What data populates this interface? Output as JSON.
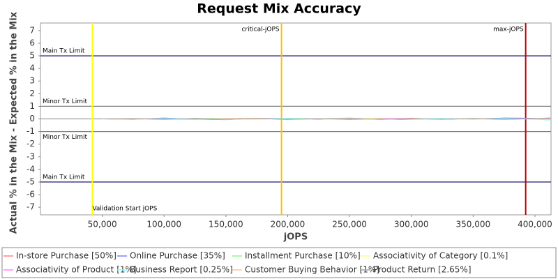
{
  "chart_data": {
    "type": "line",
    "title": "Request Mix Accuracy",
    "x_label": "jOPS",
    "y_label": "Actual % in the Mix - Expected % in the Mix",
    "xlim": [
      0,
      413000
    ],
    "ylim": [
      -7.6,
      7.6
    ],
    "xticks": [
      {
        "value": 50000,
        "label": "50,000"
      },
      {
        "value": 100000,
        "label": "100,000"
      },
      {
        "value": 150000,
        "label": "150,000"
      },
      {
        "value": 200000,
        "label": "200,000"
      },
      {
        "value": 250000,
        "label": "250,000"
      },
      {
        "value": 300000,
        "label": "300,000"
      },
      {
        "value": 350000,
        "label": "350,000"
      },
      {
        "value": 400000,
        "label": "400,000"
      }
    ],
    "yticks": [
      -7,
      -6,
      -5,
      -4,
      -3,
      -2,
      -1,
      0,
      1,
      2,
      3,
      4,
      5,
      6,
      7
    ],
    "grid": true,
    "horizontal_lines": [
      {
        "value": 5,
        "label": "Main Tx Limit",
        "color": "#000060",
        "label_side": "above"
      },
      {
        "value": 1,
        "label": "Minor Tx Limit",
        "color": "#808080",
        "label_side": "above"
      },
      {
        "value": -1,
        "label": "Minor Tx Limit",
        "color": "#808080",
        "label_side": "below"
      },
      {
        "value": -5,
        "label": "Main Tx Limit",
        "color": "#000060",
        "label_side": "above"
      }
    ],
    "vertical_lines": [
      {
        "value": 42000,
        "label": "Validation Start jOPS",
        "color": "#ffff00",
        "label_side": "bottom"
      },
      {
        "value": 195000,
        "label": "critical-jOPS",
        "color": "#ffc000",
        "label_side": "top"
      },
      {
        "value": 392500,
        "label": "max-jOPS",
        "color": "#c00000",
        "label_side": "top"
      }
    ],
    "x": [
      50000,
      75000,
      100000,
      125000,
      150000,
      175000,
      200000,
      225000,
      250000,
      275000,
      300000,
      325000,
      350000,
      375000,
      400000,
      412000
    ],
    "series": [
      {
        "name": "In-store Purchase [50%]",
        "color": "#ff8080",
        "values": [
          0,
          0.02,
          -0.03,
          0.05,
          -0.02,
          0.04,
          -0.05,
          0.03,
          0.02,
          -0.04,
          0.06,
          -0.03,
          0.02,
          0.05,
          -0.02,
          0.1
        ]
      },
      {
        "name": "Online Purchase [35%]",
        "color": "#8080ff",
        "values": [
          0,
          -0.04,
          0.08,
          -0.03,
          -0.06,
          0.05,
          0.03,
          -0.05,
          0.07,
          -0.02,
          -0.04,
          0.04,
          -0.03,
          0.08,
          0.05,
          -0.05
        ]
      },
      {
        "name": "Installment Purchase [10%]",
        "color": "#80ff80",
        "values": [
          0,
          0.03,
          -0.02,
          0.04,
          0.02,
          -0.03,
          0.05,
          0.01,
          -0.04,
          0.03,
          0.02,
          -0.02,
          0.04,
          -0.03,
          0.02,
          0.03
        ]
      },
      {
        "name": "Associativity of Category [0.1%]",
        "color": "#ffff80",
        "values": [
          0,
          -0.02,
          0.03,
          -0.05,
          0.04,
          -0.02,
          0.02,
          -0.04,
          0.03,
          0.05,
          -0.03,
          0.02,
          -0.05,
          0.03,
          -0.02,
          -0.06
        ]
      },
      {
        "name": "Associativity of Product [1%]",
        "color": "#ff80ff",
        "values": [
          0,
          0.03,
          -0.04,
          0.02,
          -0.03,
          0.04,
          -0.02,
          0.03,
          -0.05,
          0.02,
          0.04,
          -0.03,
          0.02,
          -0.04,
          0.03,
          0.02
        ]
      },
      {
        "name": "Business Report [0.25%]",
        "color": "#80ffff",
        "values": [
          0,
          -0.03,
          0.02,
          0.03,
          -0.05,
          0.02,
          0.04,
          -0.03,
          0.02,
          -0.04,
          0.03,
          0.02,
          -0.02,
          0.04,
          -0.03,
          -0.1
        ]
      },
      {
        "name": "Customer Buying Behavior [1%]",
        "color": "#ffc0a0",
        "values": [
          0,
          0.05,
          -0.02,
          -0.04,
          0.03,
          0.06,
          -0.03,
          0.02,
          0.08,
          -0.05,
          0.03,
          -0.04,
          0.05,
          -0.02,
          0.04,
          0.08
        ]
      },
      {
        "name": "Product Return [2.65%]",
        "color": "#a0a0a0",
        "values": [
          0,
          0.01,
          -0.02,
          0.02,
          -0.01,
          0.02,
          -0.02,
          0.01,
          0.02,
          -0.01,
          0.01,
          -0.02,
          0.02,
          -0.01,
          0.01,
          0.02
        ]
      }
    ]
  }
}
